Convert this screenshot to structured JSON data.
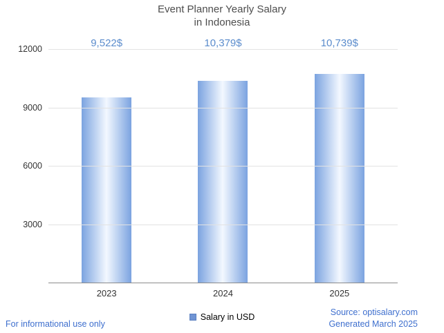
{
  "title": {
    "line1": "Event Planner Yearly Salary",
    "line2": "in Indonesia"
  },
  "chart_data": {
    "type": "bar",
    "title": "Event Planner Yearly Salary in Indonesia",
    "categories": [
      "2023",
      "2024",
      "2025"
    ],
    "values": [
      9522,
      10379,
      10739
    ],
    "value_labels": [
      "9,522$",
      "10,379$",
      "10,739$"
    ],
    "series": [
      {
        "name": "Salary in USD",
        "values": [
          9522,
          10379,
          10739
        ]
      }
    ],
    "xlabel": "",
    "ylabel": "",
    "ylim": [
      0,
      12000
    ],
    "yticks": [
      3000,
      6000,
      9000,
      12000
    ],
    "grid": true,
    "legend_position": "bottom"
  },
  "legend": {
    "label": "Salary in USD"
  },
  "footer": {
    "disclaimer": "For informational use only",
    "source": "Source: optisalary.com",
    "generated": "Generated March 2025"
  },
  "colors": {
    "bar_edge": "#7ba3e0",
    "bar_center": "#f3f8ff",
    "value_label": "#5b8ccc",
    "footer_link": "#3e6fce",
    "legend_swatch": "#7094d4",
    "gridline": "#e2e2e2",
    "axis": "#8a8a8a"
  }
}
